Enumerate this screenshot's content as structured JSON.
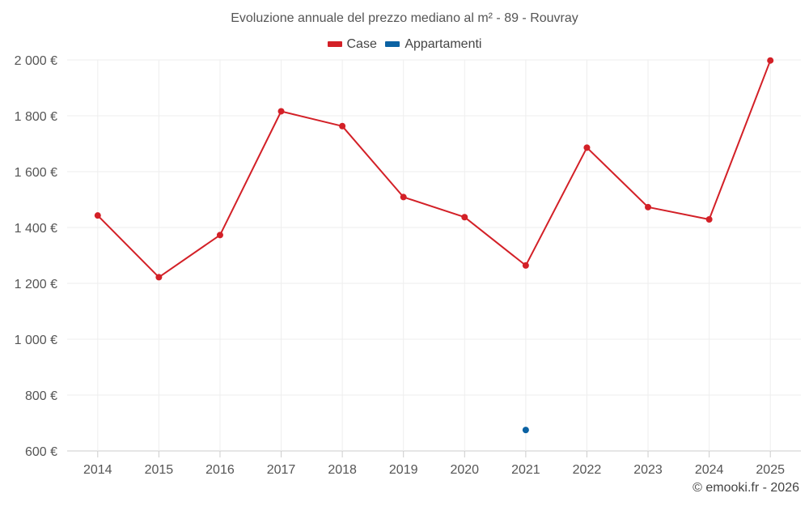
{
  "chart_data": {
    "type": "line",
    "title": "Evoluzione annuale del prezzo mediano al m² - 89 - Rouvray",
    "categories": [
      "2014",
      "2015",
      "2016",
      "2017",
      "2018",
      "2019",
      "2020",
      "2021",
      "2022",
      "2023",
      "2024",
      "2025"
    ],
    "series": [
      {
        "name": "Case",
        "color": "#d32027",
        "values": [
          1443,
          1222,
          1373,
          1816,
          1763,
          1509,
          1437,
          1264,
          1686,
          1473,
          1429,
          1998
        ]
      },
      {
        "name": "Appartamenti",
        "color": "#0b62a3",
        "values": [
          null,
          null,
          null,
          null,
          null,
          null,
          null,
          675,
          null,
          null,
          null,
          null
        ]
      }
    ],
    "ylim": [
      600,
      2000
    ],
    "yticks": [
      600,
      800,
      1000,
      1200,
      1400,
      1600,
      1800,
      2000
    ],
    "ytick_labels": [
      "600 €",
      "800 €",
      "1 000 €",
      "1 200 €",
      "1 400 €",
      "1 600 €",
      "1 800 €",
      "2 000 €"
    ],
    "xlabel": "",
    "ylabel": "",
    "grid": true,
    "legend_position": "top-center"
  },
  "credit": "© emooki.fr - 2026"
}
